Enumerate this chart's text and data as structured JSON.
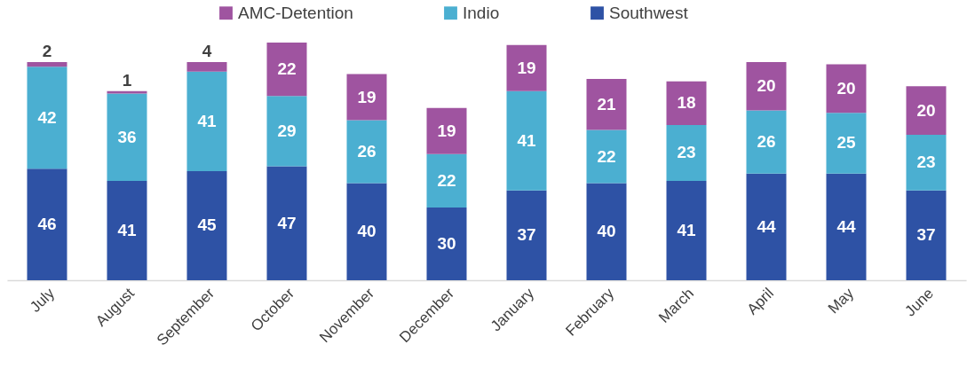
{
  "chart_data": {
    "type": "bar",
    "stacked": true,
    "data_labels": true,
    "legend": "top",
    "tick_labels": "x",
    "categories": [
      "July",
      "August",
      "September",
      "October",
      "November",
      "December",
      "January",
      "February",
      "March",
      "April",
      "May",
      "June"
    ],
    "series": [
      {
        "name": "Southwest",
        "color": "#2e52a5",
        "values": [
          46,
          41,
          45,
          47,
          40,
          30,
          37,
          40,
          41,
          44,
          44,
          37
        ]
      },
      {
        "name": "Indio",
        "color": "#4bafd1",
        "values": [
          42,
          36,
          41,
          29,
          26,
          22,
          41,
          22,
          23,
          26,
          25,
          23
        ]
      },
      {
        "name": "AMC-Detention",
        "color": "#9f54a0",
        "values": [
          2,
          1,
          4,
          22,
          19,
          19,
          19,
          21,
          18,
          20,
          20,
          20
        ]
      }
    ]
  }
}
